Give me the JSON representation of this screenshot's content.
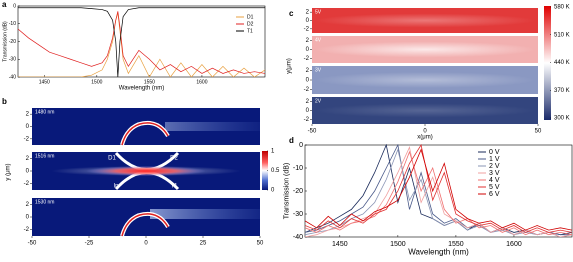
{
  "chart_data": [
    {
      "type": "line",
      "panel": "a",
      "x": [
        1425,
        1435,
        1445,
        1455,
        1465,
        1475,
        1485,
        1495,
        1505,
        1510,
        1515,
        1518,
        1520,
        1522,
        1525,
        1530,
        1540,
        1550,
        1560,
        1570,
        1580,
        1590,
        1600,
        1610,
        1620,
        1630,
        1640,
        1650,
        1660
      ],
      "series": [
        {
          "name": "D1",
          "color": "#e8a040",
          "values": [
            -40,
            -40,
            -40,
            -40,
            -40,
            -40,
            -40,
            -39,
            -36,
            -30,
            -20,
            -8,
            -4,
            -14,
            -30,
            -38,
            -28,
            -40,
            -30,
            -40,
            -32,
            -40,
            -33,
            -40,
            -34,
            -40,
            -35,
            -40,
            -36
          ]
        },
        {
          "name": "D2",
          "color": "#e02020",
          "values": [
            -13,
            -18,
            -22,
            -26,
            -28,
            -30,
            -32,
            -34,
            -32,
            -28,
            -18,
            -8,
            -3,
            -12,
            -28,
            -34,
            -25,
            -30,
            -36,
            -33,
            -37,
            -34,
            -38,
            -35,
            -38,
            -36,
            -38,
            -37,
            -38
          ]
        },
        {
          "name": "T1",
          "color": "#000000",
          "values": [
            -1,
            -1,
            -1,
            -1,
            -1,
            -1,
            -1,
            -1.5,
            -2,
            -3,
            -8,
            -20,
            -40,
            -20,
            -6,
            -2,
            -1,
            -1,
            -1,
            -1,
            -1,
            -1,
            -1,
            -1,
            -1,
            -1,
            -1,
            -1,
            -1
          ]
        }
      ],
      "xlim": [
        1425,
        1660
      ],
      "ylim": [
        -40,
        0
      ],
      "xticks": [
        1450,
        1500,
        1550,
        1600
      ],
      "yticks": [
        0,
        -10,
        -20,
        -30,
        -40
      ],
      "xlabel": "Wavelength (nm)",
      "ylabel": "Transmission (dB)",
      "legend": "upper right"
    },
    {
      "type": "heatmap",
      "panel": "b",
      "maps": [
        {
          "label": "1480 nm"
        },
        {
          "label": "1516 nm",
          "annotations": [
            "D1",
            "D2",
            "In",
            "T1"
          ]
        },
        {
          "label": "1530 nm"
        }
      ],
      "xlim": [
        -50,
        50
      ],
      "xticks": [
        -50,
        -25,
        0,
        25,
        50
      ],
      "ylim": [
        -3,
        3
      ],
      "yticks": [
        2,
        0,
        -2
      ],
      "ylabel": "y (μm)",
      "colorbar": {
        "lim": [
          0,
          1
        ],
        "ticks": [
          1,
          0.5,
          0
        ]
      }
    },
    {
      "type": "heatmap",
      "panel": "c",
      "maps": [
        {
          "label": "5V"
        },
        {
          "label": "4V"
        },
        {
          "label": "3V"
        },
        {
          "label": "2V"
        }
      ],
      "xlim": [
        -50,
        50
      ],
      "xticks": [
        -50,
        0,
        50
      ],
      "ylim": [
        -3,
        3
      ],
      "yticks": [
        2,
        0,
        -2
      ],
      "xlabel": "x(μm)",
      "ylabel": "y(μm)",
      "colorbar": {
        "lim": [
          300,
          580
        ],
        "ticks": [
          {
            "value": 580,
            "label": "580 K"
          },
          {
            "value": 510,
            "label": "510 K"
          },
          {
            "value": 440,
            "label": "440 K"
          },
          {
            "value": 370,
            "label": "370 K"
          },
          {
            "value": 300,
            "label": "300 K"
          }
        ]
      }
    },
    {
      "type": "line",
      "panel": "d",
      "x": [
        1420,
        1430,
        1440,
        1450,
        1460,
        1470,
        1480,
        1490,
        1500,
        1510,
        1520,
        1530,
        1540,
        1550,
        1560,
        1570,
        1580,
        1590,
        1600,
        1610,
        1620,
        1630,
        1640,
        1650
      ],
      "series": [
        {
          "name": "0 V",
          "color": "#1a2a5a",
          "values": [
            -38,
            -36,
            -34,
            -31,
            -28,
            -22,
            -12,
            0,
            -25,
            -10,
            -30,
            -32,
            -35,
            -33,
            -37,
            -34,
            -38,
            -36,
            -38,
            -37,
            -39,
            -38,
            -39,
            -38
          ]
        },
        {
          "name": "1 V",
          "color": "#4a5a8a",
          "values": [
            -38,
            -37,
            -35,
            -33,
            -30,
            -27,
            -20,
            -10,
            0,
            -28,
            -12,
            -30,
            -34,
            -32,
            -36,
            -35,
            -38,
            -36,
            -39,
            -37,
            -39,
            -38,
            -39,
            -39
          ]
        },
        {
          "name": "2 V",
          "color": "#8a95b5",
          "values": [
            -39,
            -38,
            -37,
            -35,
            -32,
            -30,
            -25,
            -15,
            -2,
            -24,
            -15,
            -32,
            -35,
            -33,
            -37,
            -35,
            -38,
            -37,
            -39,
            -38,
            -39,
            -38,
            -40,
            -39
          ]
        },
        {
          "name": "3 V",
          "color": "#f0a0a0",
          "values": [
            -40,
            -39,
            -37,
            -36,
            -34,
            -32,
            -30,
            -22,
            -12,
            -1,
            -25,
            -14,
            -30,
            -33,
            -36,
            -34,
            -38,
            -36,
            -39,
            -37,
            -39,
            -38,
            -40,
            -39
          ]
        },
        {
          "name": "4 V",
          "color": "#f07070",
          "values": [
            -36,
            -38,
            -35,
            -37,
            -34,
            -33,
            -31,
            -26,
            -16,
            -3,
            -20,
            -10,
            -28,
            -34,
            -32,
            -36,
            -35,
            -38,
            -36,
            -39,
            -37,
            -39,
            -38,
            -39
          ]
        },
        {
          "name": "5 V",
          "color": "#e03030",
          "values": [
            -35,
            -37,
            -33,
            -36,
            -32,
            -34,
            -30,
            -28,
            -20,
            -8,
            0,
            -24,
            -12,
            -30,
            -33,
            -35,
            -34,
            -37,
            -35,
            -38,
            -36,
            -38,
            -37,
            -38
          ]
        },
        {
          "name": "6 V",
          "color": "#d00000",
          "values": [
            -33,
            -36,
            -31,
            -35,
            -30,
            -33,
            -29,
            -27,
            -24,
            -14,
            -2,
            -20,
            -8,
            -28,
            -32,
            -34,
            -33,
            -36,
            -34,
            -37,
            -35,
            -37,
            -36,
            -37
          ]
        }
      ],
      "xlim": [
        1420,
        1650
      ],
      "ylim": [
        -40,
        0
      ],
      "xticks": [
        1450,
        1500,
        1550,
        1600
      ],
      "yticks": [
        0,
        -10,
        -20,
        -30,
        -40
      ],
      "xlabel": "Wavelength (nm)",
      "ylabel": "Transmission (dB)",
      "legend": "upper right"
    }
  ]
}
